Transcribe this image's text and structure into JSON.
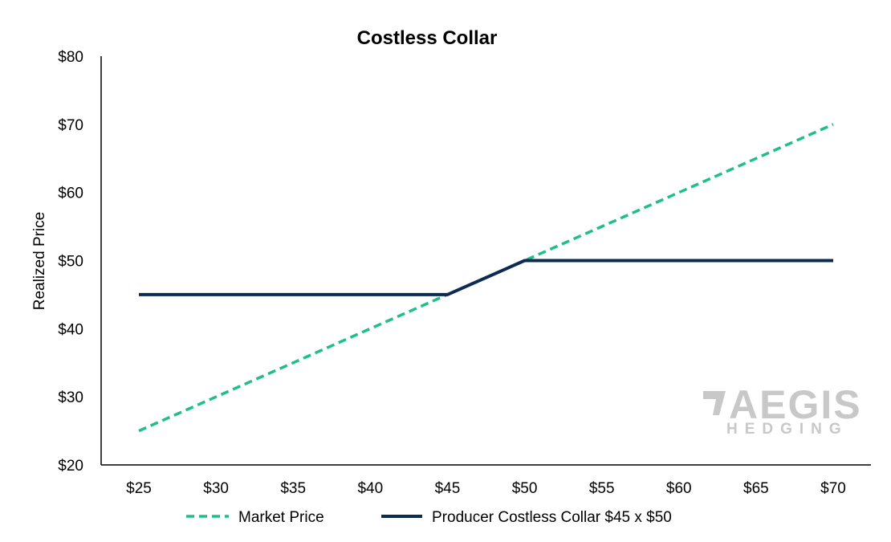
{
  "chart_data": {
    "type": "line",
    "title": "Costless Collar",
    "xlabel": "",
    "ylabel": "Realized Price",
    "categories": [
      "$25",
      "$30",
      "$35",
      "$40",
      "$45",
      "$50",
      "$55",
      "$60",
      "$65",
      "$70"
    ],
    "x": [
      25,
      30,
      35,
      40,
      45,
      50,
      55,
      60,
      65,
      70
    ],
    "yticks": [
      "$20",
      "$30",
      "$40",
      "$50",
      "$60",
      "$70",
      "$80"
    ],
    "ylim": [
      20,
      80
    ],
    "xlim": [
      25,
      70
    ],
    "grid": false,
    "legend_position": "bottom",
    "series": [
      {
        "name": "Market Price",
        "values": [
          25,
          30,
          35,
          40,
          45,
          50,
          55,
          60,
          65,
          70
        ],
        "color": "#1fbf8a",
        "style": "dashed"
      },
      {
        "name": "Producer Costless Collar $45 x $50",
        "values": [
          45,
          45,
          45,
          45,
          45,
          50,
          50,
          50,
          50,
          50
        ],
        "color": "#0d2b52",
        "style": "solid"
      }
    ]
  },
  "watermark": {
    "line1": "AEGIS",
    "line2": "HEDGING",
    "color": "#c8c8c8"
  }
}
